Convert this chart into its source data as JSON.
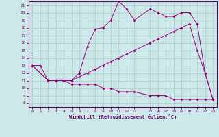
{
  "xlabel": "Windchill (Refroidissement éolien,°C)",
  "bg_color": "#cce8e8",
  "grid_color": "#aacccc",
  "line_color": "#990077",
  "xlim": [
    -0.5,
    23.5
  ],
  "ylim": [
    7.5,
    21.5
  ],
  "yticks": [
    8,
    9,
    10,
    11,
    12,
    13,
    14,
    15,
    16,
    17,
    18,
    19,
    20,
    21
  ],
  "xtick_positions": [
    0,
    1,
    2,
    3,
    4,
    5,
    6,
    7,
    8,
    9,
    10,
    11,
    12,
    13,
    15,
    16,
    17,
    18,
    19,
    20,
    21,
    22,
    23
  ],
  "xtick_labels": [
    "0",
    "1",
    "2",
    "3",
    "4",
    "5",
    "6",
    "7",
    "8",
    "9",
    "10",
    "11",
    "12",
    "13",
    "15",
    "16",
    "17",
    "18",
    "19",
    "20",
    "21",
    "22",
    "23"
  ],
  "line1_x": [
    0,
    1,
    2,
    3,
    4,
    5,
    6,
    7,
    8,
    9,
    10,
    11,
    12,
    13,
    15,
    16,
    17,
    18,
    19,
    20,
    21,
    22,
    23
  ],
  "line1_y": [
    13.0,
    13.0,
    11.0,
    11.0,
    11.0,
    11.0,
    12.0,
    15.5,
    17.8,
    18.0,
    19.0,
    21.5,
    20.5,
    19.0,
    20.5,
    20.0,
    19.5,
    19.5,
    20.0,
    20.0,
    18.5,
    12.0,
    8.5
  ],
  "line2_x": [
    0,
    2,
    3,
    4,
    5,
    6,
    7,
    8,
    9,
    10,
    11,
    12,
    13,
    15,
    16,
    17,
    18,
    19,
    20,
    21,
    22,
    23
  ],
  "line2_y": [
    13.0,
    11.0,
    11.0,
    11.0,
    11.0,
    11.5,
    12.0,
    12.5,
    13.0,
    13.5,
    14.0,
    14.5,
    15.0,
    16.0,
    16.5,
    17.0,
    17.5,
    18.0,
    18.5,
    15.0,
    12.0,
    8.5
  ],
  "line3_x": [
    0,
    2,
    3,
    4,
    5,
    6,
    7,
    8,
    9,
    10,
    11,
    12,
    13,
    15,
    16,
    17,
    18,
    19,
    20,
    21,
    22,
    23
  ],
  "line3_y": [
    13.0,
    11.0,
    11.0,
    11.0,
    10.5,
    10.5,
    10.5,
    10.5,
    10.0,
    10.0,
    9.5,
    9.5,
    9.5,
    9.0,
    9.0,
    9.0,
    8.5,
    8.5,
    8.5,
    8.5,
    8.5,
    8.5
  ]
}
